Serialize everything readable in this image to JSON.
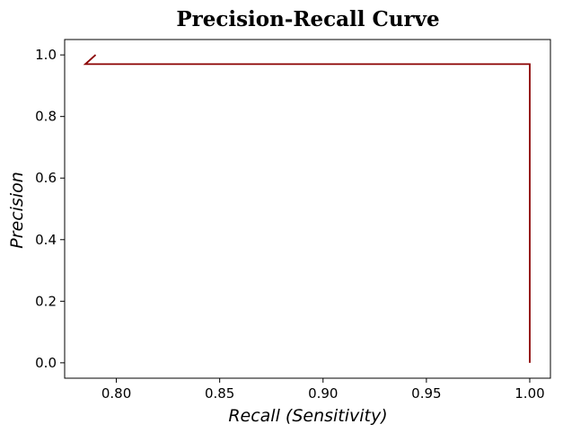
{
  "chart_data": {
    "type": "line",
    "title": "Precision-Recall Curve",
    "xlabel": "Recall (Sensitivity)",
    "ylabel": "Precision",
    "xlim": [
      0.775,
      1.01
    ],
    "ylim": [
      -0.05,
      1.05
    ],
    "grid": false,
    "x_ticks": [
      0.8,
      0.85,
      0.9,
      0.95,
      1.0
    ],
    "x_tick_labels": [
      "0.80",
      "0.85",
      "0.90",
      "0.95",
      "1.00"
    ],
    "y_ticks": [
      0.0,
      0.2,
      0.4,
      0.6,
      0.8,
      1.0
    ],
    "y_tick_labels": [
      "0.0",
      "0.2",
      "0.4",
      "0.6",
      "0.8",
      "1.0"
    ],
    "series": [
      {
        "color": "#8b0000",
        "x": [
          0.79,
          0.785,
          1.0,
          1.0
        ],
        "y": [
          1.0,
          0.97,
          0.97,
          0.0
        ]
      }
    ]
  }
}
